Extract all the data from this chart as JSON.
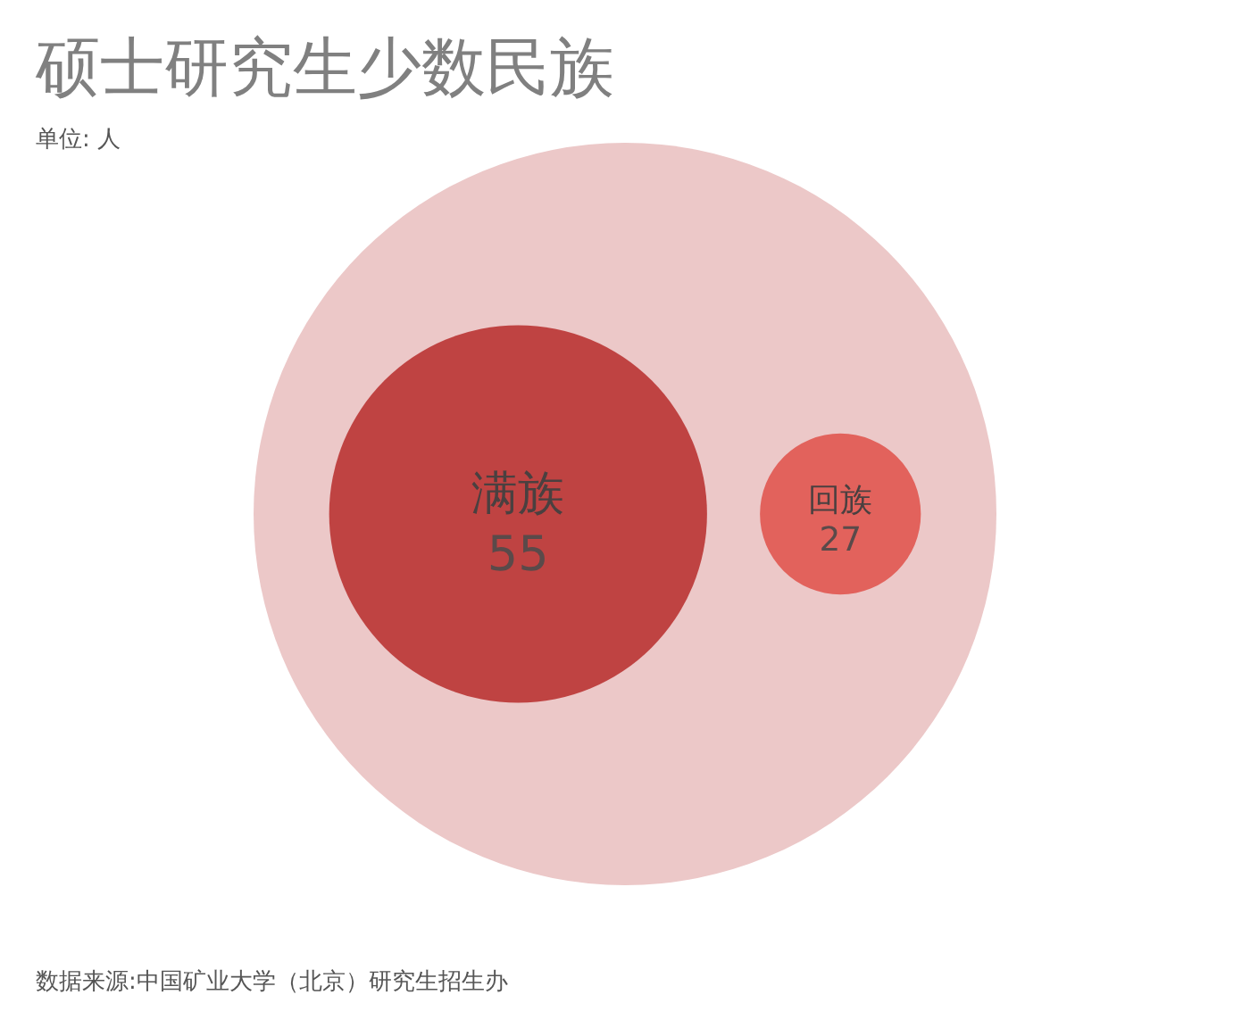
{
  "chart_data": {
    "type": "other",
    "title": "硕士研究生少数民族",
    "subtitle": "单位: 人",
    "annotations": [
      "数据来源:中国矿业大学（北京）研究生招生办"
    ],
    "categories": [
      "满族",
      "回族"
    ],
    "values": [
      55,
      27
    ],
    "colors": [
      "#bf4342",
      "#e2625c"
    ],
    "data_labels": true
  }
}
